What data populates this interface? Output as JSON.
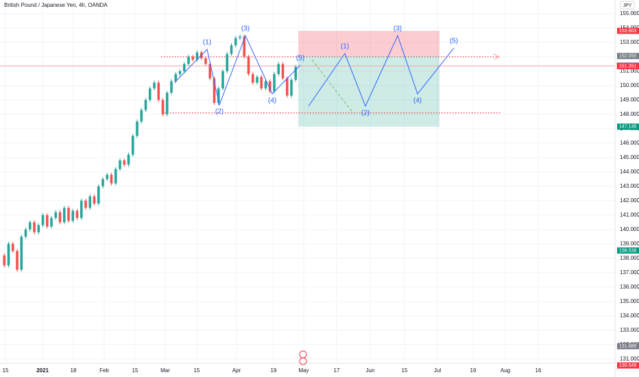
{
  "chart_data": {
    "type": "candlestick",
    "title": "British Pound / Japanese Yen, 4h, OANDA",
    "currency": "JPY",
    "up_color": "#26a69a",
    "down_color": "#ef5350",
    "closes": [
      138.2,
      137.5,
      139,
      138.5,
      137.2,
      139.5,
      140,
      140.5,
      139.8,
      140.3,
      141,
      140.2,
      140.8,
      141.2,
      140.5,
      141.5,
      140.6,
      141.3,
      140.8,
      142,
      141.5,
      142.3,
      141.8,
      143,
      143.5,
      143.8,
      143.2,
      144.2,
      144.8,
      144.5,
      145.2,
      146.5,
      147.5,
      148.3,
      149,
      149.8,
      150.2,
      149,
      148,
      149.5,
      150.3,
      150.8,
      151,
      151.5,
      152,
      151.8,
      152.3,
      151.9,
      151.5,
      150.5,
      148.8,
      149.8,
      151,
      152.2,
      152.8,
      153.3,
      153.4,
      152,
      150.8,
      150.2,
      150.6,
      149.8,
      150.3,
      149.6,
      150.8,
      151.5,
      150.5,
      149.3,
      150.4,
      151.3
    ],
    "ylim": [
      130.1,
      155.95
    ],
    "yticks": [
      {
        "value": 131,
        "label": "131.000"
      },
      {
        "value": 132,
        "label": "132.000"
      },
      {
        "value": 133,
        "label": "133.000"
      },
      {
        "value": 134,
        "label": "134.000"
      },
      {
        "value": 135,
        "label": "135.000"
      },
      {
        "value": 136,
        "label": "136.000"
      },
      {
        "value": 137,
        "label": "137.000"
      },
      {
        "value": 138,
        "label": "138.000"
      },
      {
        "value": 139,
        "label": "139.000"
      },
      {
        "value": 140,
        "label": "140.000"
      },
      {
        "value": 141,
        "label": "141.000"
      },
      {
        "value": 142,
        "label": "142.000"
      },
      {
        "value": 143,
        "label": "143.000"
      },
      {
        "value": 144,
        "label": "144.000"
      },
      {
        "value": 145,
        "label": "145.000"
      },
      {
        "value": 146,
        "label": "146.000"
      },
      {
        "value": 147,
        "label": "147.000"
      },
      {
        "value": 148,
        "label": "148.000"
      },
      {
        "value": 149,
        "label": "149.000"
      },
      {
        "value": 150,
        "label": "150.000"
      },
      {
        "value": 151,
        "label": "151.000"
      },
      {
        "value": 152,
        "label": "152.000"
      },
      {
        "value": 153,
        "label": "153.000"
      },
      {
        "value": 154,
        "label": "154.000"
      },
      {
        "value": 155,
        "label": "155.000"
      }
    ],
    "time_labels": [
      "15",
      "2021",
      "18",
      "Feb",
      "15",
      "Mar",
      "15",
      "Apr",
      "19",
      "May",
      "17",
      "Jun",
      "15",
      "Jul",
      "19",
      "Aug",
      "16"
    ],
    "price_badges": [
      153.803,
      152.055,
      151.368,
      151.364,
      151.364,
      151.351,
      147.146,
      138.538,
      131.889,
      130.549
    ],
    "badge_colors": [
      "#f23645",
      "#787b86",
      "#ffffff",
      "#2962ff",
      "#2962ff",
      "#f23645",
      "#089981",
      "#089981",
      "#787b86",
      "#f23645"
    ],
    "stop_zone": [
      153.803,
      152.055
    ],
    "target_zone": [
      152.055,
      147.146
    ],
    "levels": [
      152.0,
      148.1
    ],
    "current_price": 151.368,
    "wave_labels": [
      "(1)",
      "(2)",
      "(3)",
      "(4)",
      "(5)"
    ],
    "wave_count": [
      150.23,
      152.52,
      148.66,
      153.47,
      149.42,
      151.42
    ],
    "projection": [
      148.57,
      152.23,
      148.57,
      153.47,
      149.42,
      152.61
    ],
    "dashed_path": [
      151.8,
      148.09
    ]
  }
}
